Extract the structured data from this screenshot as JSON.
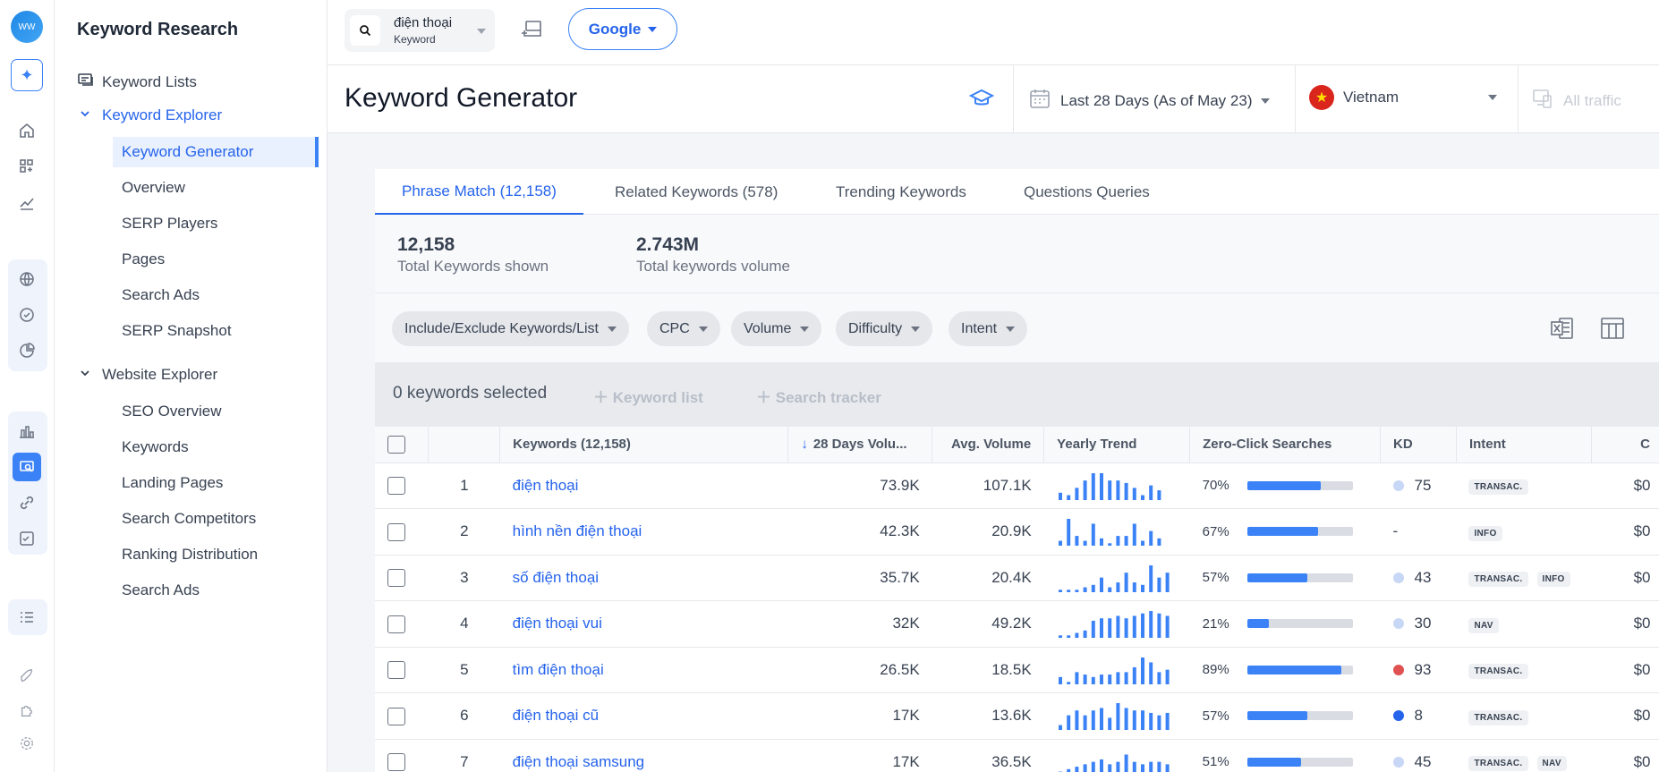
{
  "rail": {
    "logo_text": "WW"
  },
  "sidebar": {
    "title": "Keyword Research",
    "keyword_lists": "Keyword Lists",
    "keyword_explorer": "Keyword Explorer",
    "explorer_items": [
      "Keyword Generator",
      "Overview",
      "SERP Players",
      "Pages",
      "Search Ads",
      "SERP Snapshot"
    ],
    "website_explorer": "Website Explorer",
    "website_items": [
      "SEO Overview",
      "Keywords",
      "Landing Pages",
      "Search Competitors",
      "Ranking Distribution",
      "Search Ads"
    ]
  },
  "topbar": {
    "keyword_value": "điện thoại",
    "keyword_type": "Keyword",
    "engine": "Google"
  },
  "header": {
    "title": "Keyword Generator",
    "date_range": "Last 28 Days (As of May 23)",
    "country": "Vietnam",
    "traffic": "All traffic"
  },
  "tabs": [
    "Phrase Match (12,158)",
    "Related Keywords (578)",
    "Trending Keywords",
    "Questions Queries"
  ],
  "stats": {
    "total_keywords": "12,158",
    "total_keywords_label": "Total Keywords shown",
    "total_volume": "2.743M",
    "total_volume_label": "Total keywords volume"
  },
  "filters": [
    "Include/Exclude Keywords/List",
    "CPC",
    "Volume",
    "Difficulty",
    "Intent"
  ],
  "selection": {
    "count": "0 keywords selected",
    "keyword_list": "Keyword list",
    "search_tracker": "Search tracker"
  },
  "table": {
    "headers": {
      "keywords": "Keywords (12,158)",
      "days_volume": "28 Days Volu...",
      "avg_volume": "Avg. Volume",
      "yearly_trend": "Yearly Trend",
      "zero_click": "Zero-Click Searches",
      "kd": "KD",
      "intent": "Intent",
      "cpc": "C"
    },
    "colors": {
      "blue": "#3b82f6",
      "kd_light": "#c7d7f5",
      "kd_red": "#e05252",
      "kd_blue": "#2563eb"
    },
    "rows": [
      {
        "idx": "1",
        "keyword": "điện thoại",
        "vol": "73.9K",
        "avg": "107.1K",
        "zc": "70%",
        "zc_val": 70,
        "kd": "75",
        "kd_color": "#c7d7f5",
        "intent": [
          "TRANSAC."
        ],
        "cpc": "$0",
        "trend": [
          3,
          2,
          5,
          8,
          11,
          11,
          8,
          8,
          7,
          5,
          2,
          6,
          4
        ]
      },
      {
        "idx": "2",
        "keyword": "hình nền điện thoại",
        "vol": "42.3K",
        "avg": "20.9K",
        "zc": "67%",
        "zc_val": 67,
        "kd": "-",
        "kd_color": "",
        "intent": [
          "INFO"
        ],
        "cpc": "$0",
        "trend": [
          2,
          11,
          4,
          2,
          9,
          3,
          1,
          4,
          4,
          9,
          2,
          6,
          3
        ]
      },
      {
        "idx": "3",
        "keyword": "số điện thoại",
        "vol": "35.7K",
        "avg": "20.4K",
        "zc": "57%",
        "zc_val": 57,
        "kd": "43",
        "kd_color": "#c7d7f5",
        "intent": [
          "TRANSAC.",
          "INFO"
        ],
        "cpc": "$0",
        "trend": [
          1,
          1,
          1,
          2,
          3,
          6,
          2,
          4,
          8,
          4,
          3,
          11,
          6,
          8
        ]
      },
      {
        "idx": "4",
        "keyword": "điện thoại vui",
        "vol": "32K",
        "avg": "49.2K",
        "zc": "21%",
        "zc_val": 21,
        "kd": "30",
        "kd_color": "#c7d7f5",
        "intent": [
          "NAV"
        ],
        "cpc": "$0",
        "trend": [
          1,
          1,
          2,
          3,
          7,
          8,
          8,
          9,
          8,
          9,
          10,
          11,
          10,
          9
        ]
      },
      {
        "idx": "5",
        "keyword": "tìm điện thoại",
        "vol": "26.5K",
        "avg": "18.5K",
        "zc": "89%",
        "zc_val": 89,
        "kd": "93",
        "kd_color": "#e05252",
        "intent": [
          "TRANSAC."
        ],
        "cpc": "$0",
        "trend": [
          3,
          1,
          5,
          4,
          3,
          4,
          4,
          5,
          5,
          7,
          11,
          9,
          5,
          6
        ]
      },
      {
        "idx": "6",
        "keyword": "điện thoại cũ",
        "vol": "17K",
        "avg": "13.6K",
        "zc": "57%",
        "zc_val": 57,
        "kd": "8",
        "kd_color": "#2563eb",
        "intent": [
          "TRANSAC."
        ],
        "cpc": "$0",
        "trend": [
          2,
          6,
          8,
          6,
          8,
          9,
          5,
          11,
          9,
          8,
          8,
          7,
          6,
          7
        ]
      },
      {
        "idx": "7",
        "keyword": "điện thoại samsung",
        "vol": "17K",
        "avg": "36.5K",
        "zc": "51%",
        "zc_val": 51,
        "kd": "45",
        "kd_color": "#c7d7f5",
        "intent": [
          "TRANSAC.",
          "NAV"
        ],
        "cpc": "$0",
        "trend": [
          2,
          3,
          4,
          5,
          6,
          7,
          5,
          6,
          9,
          6,
          5,
          6,
          6,
          5
        ]
      }
    ]
  }
}
